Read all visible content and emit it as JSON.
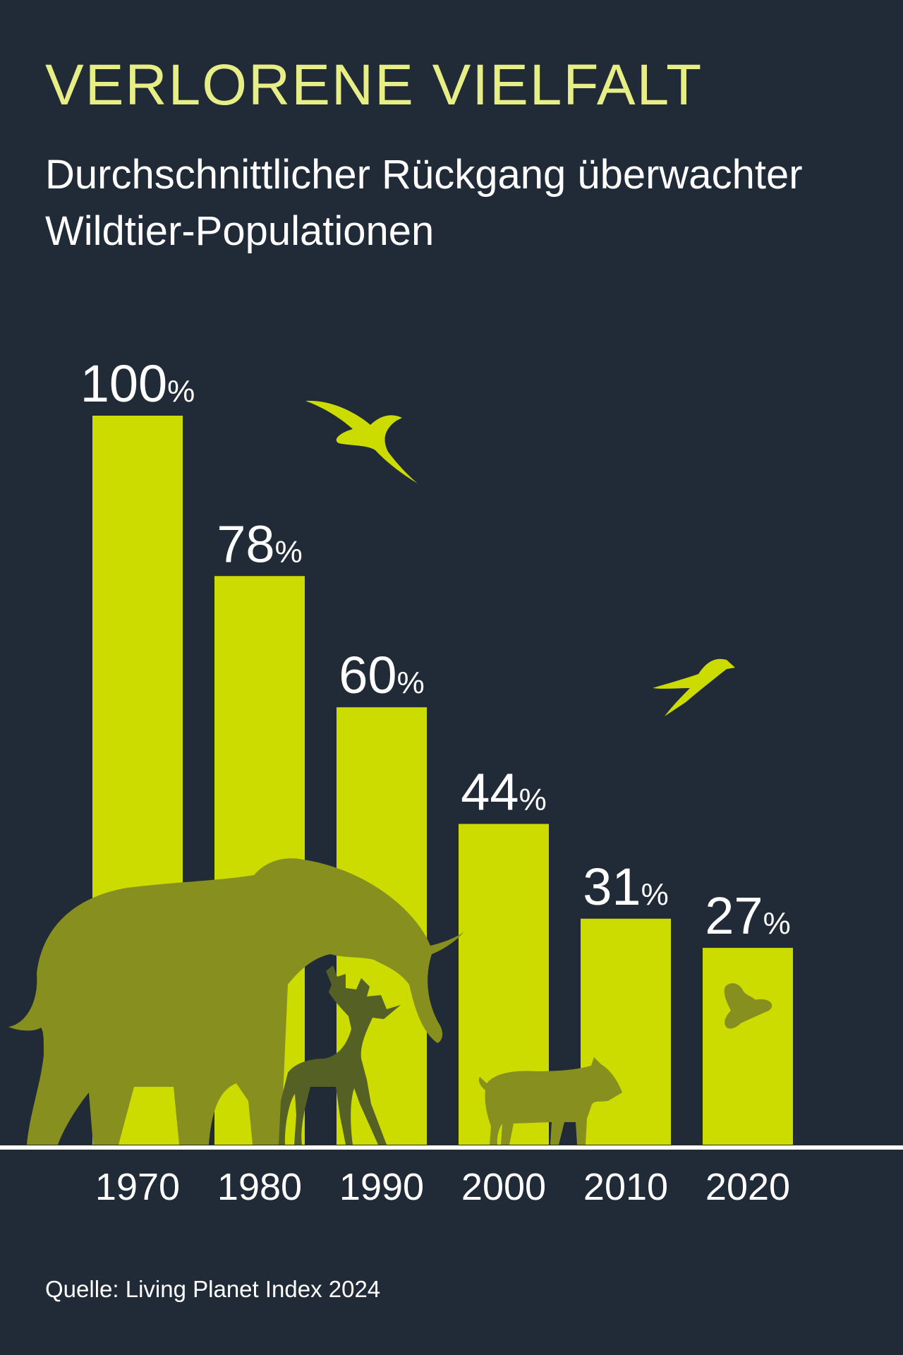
{
  "header": {
    "title": "VERLORENE VIELFALT",
    "subtitle": "Durchschnittlicher Rückgang überwachter Wildtier-Populationen"
  },
  "chart_data": {
    "type": "bar",
    "categories": [
      "1970",
      "1980",
      "1990",
      "2000",
      "2010",
      "2020"
    ],
    "values": [
      100,
      78,
      60,
      44,
      31,
      27
    ],
    "value_suffix": "%",
    "title": "VERLORENE VIELFALT",
    "subtitle": "Durchschnittlicher Rückgang überwachter Wildtier-Populationen",
    "ylim": [
      0,
      100
    ],
    "grid": false,
    "legend": "none"
  },
  "decorations": [
    "bird-icon",
    "swallow-icon",
    "elephant-icon",
    "deer-icon",
    "warthog-icon",
    "bee-icon"
  ],
  "colors": {
    "background": "#212b37",
    "bar": "#ccdb00",
    "title": "#e8ee86",
    "text": "#ffffff",
    "animal_dark": "#87901f"
  },
  "footer": {
    "source": "Quelle: Living Planet Index 2024"
  }
}
